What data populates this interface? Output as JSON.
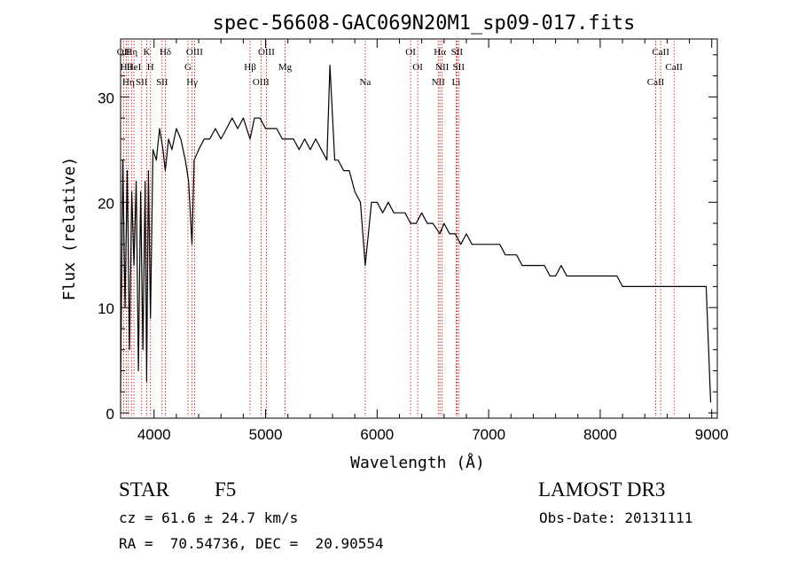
{
  "chart_data": {
    "type": "line",
    "title": "spec-56608-GAC069N20M1_sp09-017.fits",
    "xlabel": "Wavelength (Å)",
    "ylabel": "Flux (relative)",
    "xlim": [
      3700,
      9050
    ],
    "ylim": [
      -0.5,
      35.5
    ],
    "xticks": [
      4000,
      5000,
      6000,
      7000,
      8000,
      9000
    ],
    "yticks": [
      0,
      10,
      20,
      30
    ],
    "grid": false,
    "line_color": "#000000",
    "marker_color": "#cc0000",
    "series": [
      {
        "x": [
          3700,
          3720,
          3740,
          3760,
          3780,
          3800,
          3820,
          3840,
          3860,
          3880,
          3900,
          3920,
          3934,
          3950,
          3968,
          3990,
          4020,
          4050,
          4080,
          4101,
          4130,
          4160,
          4200,
          4240,
          4280,
          4310,
          4340,
          4360,
          4400,
          4450,
          4500,
          4550,
          4600,
          4650,
          4700,
          4750,
          4800,
          4861,
          4900,
          4950,
          5000,
          5050,
          5100,
          5150,
          5200,
          5250,
          5300,
          5350,
          5400,
          5450,
          5500,
          5550,
          5577,
          5620,
          5650,
          5700,
          5750,
          5800,
          5850,
          5893,
          5950,
          6000,
          6050,
          6100,
          6150,
          6200,
          6250,
          6300,
          6350,
          6400,
          6450,
          6500,
          6563,
          6600,
          6650,
          6700,
          6750,
          6800,
          6850,
          6900,
          6950,
          7000,
          7050,
          7100,
          7150,
          7200,
          7250,
          7300,
          7350,
          7400,
          7450,
          7500,
          7550,
          7600,
          7650,
          7700,
          7750,
          7800,
          7850,
          7900,
          7950,
          8000,
          8050,
          8100,
          8150,
          8200,
          8250,
          8300,
          8350,
          8400,
          8450,
          8500,
          8550,
          8600,
          8650,
          8700,
          8750,
          8800,
          8850,
          8900,
          8950,
          8990
        ],
        "y": [
          2,
          24,
          10,
          23,
          6,
          21,
          14,
          22,
          4,
          21,
          6,
          22,
          3,
          23,
          9,
          25,
          24,
          27,
          25,
          23,
          26,
          25,
          27,
          26,
          24,
          22,
          16,
          24,
          25,
          26,
          26,
          27,
          26,
          27,
          28,
          27,
          28,
          26,
          28,
          28,
          27,
          27,
          27,
          26,
          26,
          26,
          25,
          26,
          25,
          26,
          25,
          24,
          33,
          24,
          24,
          23,
          23,
          21,
          20,
          14,
          20,
          20,
          19,
          20,
          19,
          19,
          19,
          18,
          18,
          19,
          18,
          18,
          17,
          18,
          17,
          17,
          16,
          17,
          16,
          16,
          16,
          16,
          16,
          16,
          15,
          15,
          15,
          14,
          14,
          14,
          14,
          14,
          13,
          13,
          14,
          13,
          13,
          13,
          13,
          13,
          13,
          13,
          13,
          13,
          13,
          12,
          12,
          12,
          12,
          12,
          12,
          12,
          12,
          12,
          12,
          12,
          12,
          12,
          12,
          12,
          12,
          1
        ]
      }
    ],
    "lines": [
      {
        "x": 3727,
        "label": "OII"
      },
      {
        "x": 3750,
        "label": "Hθ"
      },
      {
        "x": 3770,
        "label": "Hη"
      },
      {
        "x": 3798,
        "label": "Hη"
      },
      {
        "x": 3820,
        "label": "HeI"
      },
      {
        "x": 3889,
        "label": "SII"
      },
      {
        "x": 3934,
        "label": "K"
      },
      {
        "x": 3968,
        "label": "H"
      },
      {
        "x": 4072,
        "label": "SII"
      },
      {
        "x": 4102,
        "label": "Hδ"
      },
      {
        "x": 4304,
        "label": "G"
      },
      {
        "x": 4341,
        "label": "Hγ"
      },
      {
        "x": 4363,
        "label": "OIII"
      },
      {
        "x": 4861,
        "label": "Hβ"
      },
      {
        "x": 4959,
        "label": "OIII"
      },
      {
        "x": 5007,
        "label": "OIII"
      },
      {
        "x": 5175,
        "label": "Mg"
      },
      {
        "x": 5893,
        "label": "Na"
      },
      {
        "x": 6300,
        "label": "OI"
      },
      {
        "x": 6364,
        "label": "OI"
      },
      {
        "x": 6548,
        "label": "NII"
      },
      {
        "x": 6563,
        "label": "Hα"
      },
      {
        "x": 6583,
        "label": "NII"
      },
      {
        "x": 6708,
        "label": "Li"
      },
      {
        "x": 6716,
        "label": "SII"
      },
      {
        "x": 6731,
        "label": "SII"
      },
      {
        "x": 8498,
        "label": "CaII"
      },
      {
        "x": 8542,
        "label": "CaII"
      },
      {
        "x": 8662,
        "label": "CaII"
      }
    ]
  },
  "info": {
    "object_type": "STAR",
    "subclass": "F5",
    "survey": "LAMOST DR3",
    "cz": "cz = 61.6 ± 24.7 km/s",
    "obs_date": "Obs-Date: 20131111",
    "coords": "RA =  70.54736, DEC =  20.90554"
  }
}
